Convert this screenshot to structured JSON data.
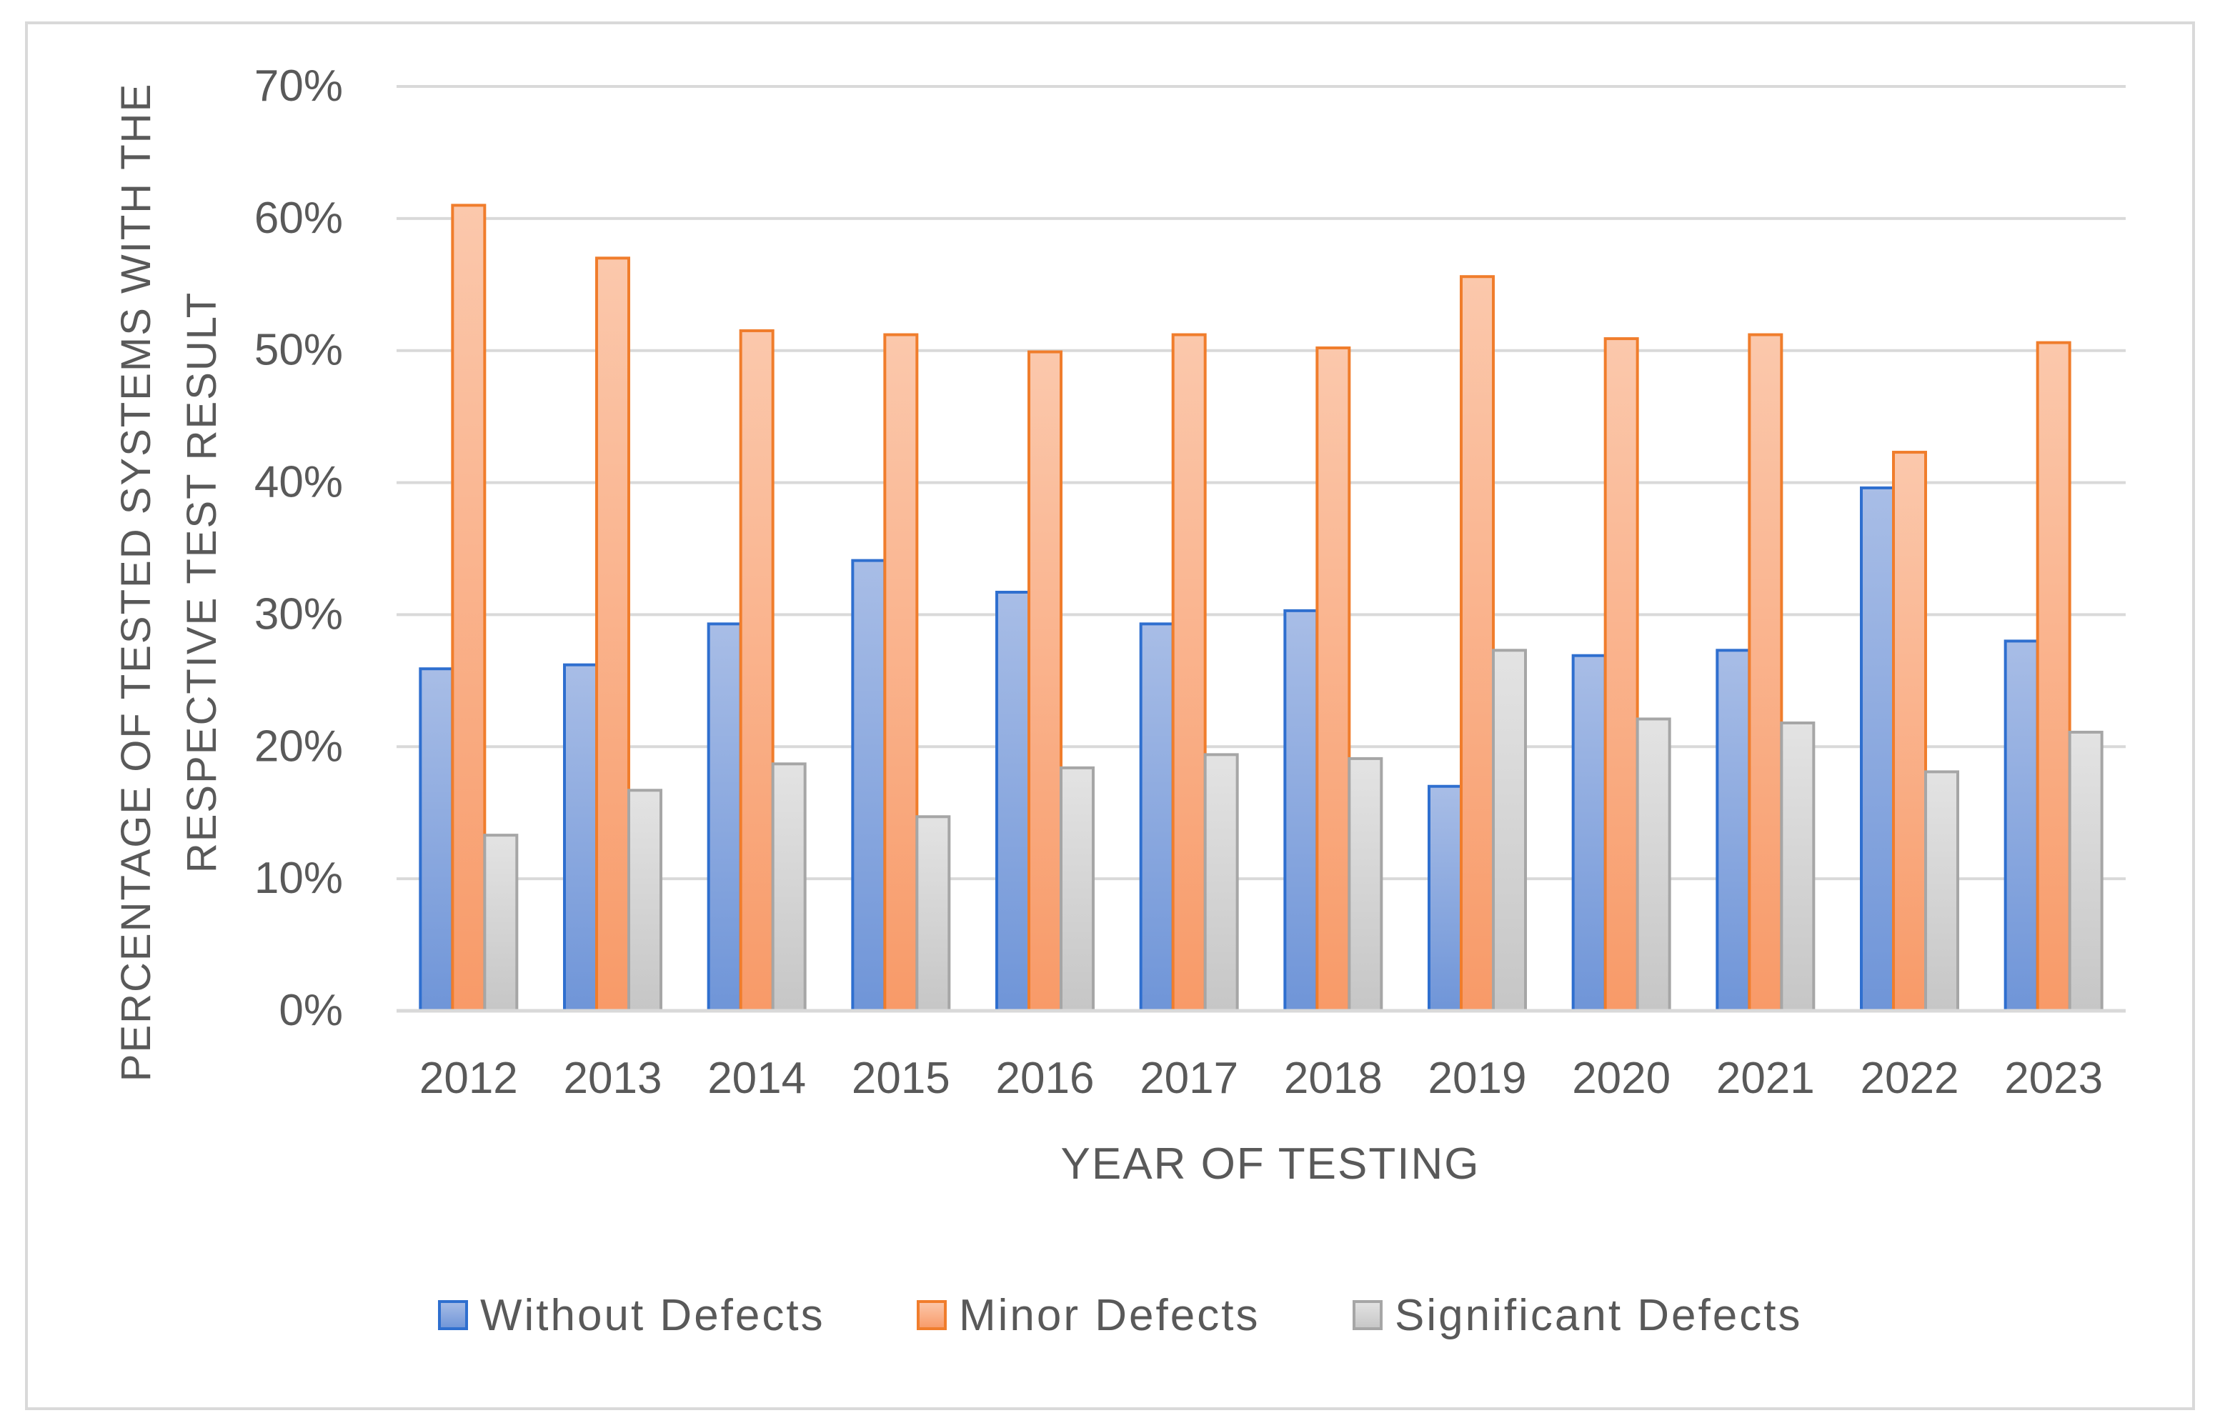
{
  "chart_data": {
    "type": "bar",
    "title": "",
    "xlabel": "YEAR OF TESTING",
    "ylabel_lines": [
      "PERCENTAGE OF TESTED SYSTEMS WITH THE",
      "RESPECTIVE TEST RESULT"
    ],
    "categories": [
      "2012",
      "2013",
      "2014",
      "2015",
      "2016",
      "2017",
      "2018",
      "2019",
      "2020",
      "2021",
      "2022",
      "2023"
    ],
    "series": [
      {
        "name": "Without Defects",
        "values": [
          25.9,
          26.2,
          29.3,
          34.1,
          31.7,
          29.3,
          30.3,
          17.0,
          26.9,
          27.3,
          39.6,
          28.0
        ],
        "fill_top": "#a8bde6",
        "fill_bottom": "#6f95d8",
        "stroke": "#2f6fcf"
      },
      {
        "name": "Minor Defects",
        "values": [
          61.0,
          57.0,
          51.5,
          51.2,
          49.9,
          51.2,
          50.2,
          55.6,
          50.9,
          51.2,
          42.3,
          50.6
        ],
        "fill_top": "#fbc8ac",
        "fill_bottom": "#f89a68",
        "stroke": "#f07d2c"
      },
      {
        "name": "Significant Defects",
        "values": [
          13.3,
          16.7,
          18.7,
          14.7,
          18.4,
          19.4,
          19.1,
          27.3,
          22.1,
          21.8,
          18.1,
          21.1
        ],
        "fill_top": "#e3e3e3",
        "fill_bottom": "#c6c6c6",
        "stroke": "#a6a6a6"
      }
    ],
    "ylim": [
      0,
      70
    ],
    "yticks": [
      0,
      10,
      20,
      30,
      40,
      50,
      60,
      70
    ],
    "ytick_labels": [
      "0%",
      "10%",
      "20%",
      "30%",
      "40%",
      "50%",
      "60%",
      "70%"
    ],
    "grid": true,
    "gridline_color": "#d9d9d9",
    "legend_position": "bottom",
    "frame_border_color": "#d9d9d9"
  }
}
